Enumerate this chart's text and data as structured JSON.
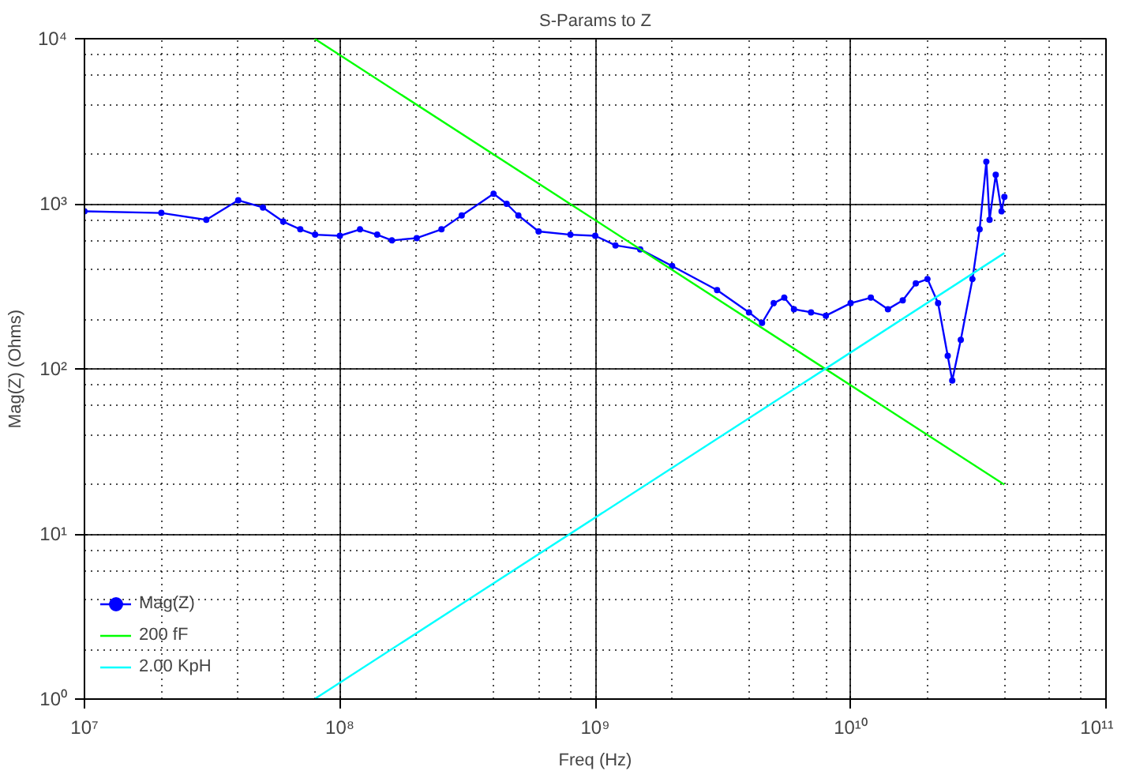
{
  "chart_data": {
    "type": "line",
    "title": "S-Params to Z",
    "xlabel": "Freq (Hz)",
    "ylabel": "Mag(Z) (Ohms)",
    "log": "xy",
    "grid": true,
    "legend": "bottom left",
    "xlim": [
      10000000.0,
      100000000000.0
    ],
    "ylim": [
      1,
      10000.0
    ],
    "xticks": [
      {
        "value": 10000000.0,
        "label": "10⁷"
      },
      {
        "value": 100000000.0,
        "label": "10⁸"
      },
      {
        "value": 1000000000.0,
        "label": "10⁹"
      },
      {
        "value": 10000000000.0,
        "label": "10¹⁰"
      },
      {
        "value": 100000000000.0,
        "label": "10¹¹"
      }
    ],
    "yticks": [
      {
        "value": 1,
        "label": "10⁰"
      },
      {
        "value": 10,
        "label": "10¹"
      },
      {
        "value": 100,
        "label": "10²"
      },
      {
        "value": 1000,
        "label": "10³"
      },
      {
        "value": 10000,
        "label": "10⁴"
      }
    ],
    "series": [
      {
        "name": "Mag(Z)",
        "color": "#0000ff",
        "marker": "circle",
        "x": [
          10000000.0,
          20000000.0,
          30000000.0,
          40000000.0,
          50000000.0,
          60000000.0,
          70000000.0,
          80000000.0,
          100000000.0,
          120000000.0,
          140000000.0,
          160000000.0,
          200000000.0,
          250000000.0,
          300000000.0,
          400000000.0,
          450000000.0,
          500000000.0,
          600000000.0,
          800000000.0,
          1000000000.0,
          1200000000.0,
          1500000000.0,
          2000000000.0,
          3000000000.0,
          4000000000.0,
          4500000000.0,
          5000000000.0,
          5500000000.0,
          6000000000.0,
          7000000000.0,
          8000000000.0,
          10000000000.0,
          12000000000.0,
          14000000000.0,
          16000000000.0,
          18000000000.0,
          20000000000.0,
          22000000000.0,
          24000000000.0,
          25000000000.0,
          27000000000.0,
          30000000000.0,
          32000000000.0,
          34000000000.0,
          35000000000.0,
          37000000000.0,
          39000000000.0,
          40000000000.0
        ],
        "values": [
          900,
          880,
          800,
          1050,
          950,
          780,
          700,
          650,
          640,
          700,
          650,
          600,
          620,
          700,
          850,
          1150,
          1000,
          850,
          680,
          650,
          640,
          560,
          530,
          420,
          300,
          220,
          190,
          250,
          270,
          230,
          220,
          210,
          250,
          270,
          230,
          260,
          330,
          350,
          250,
          120,
          85,
          150,
          350,
          700,
          1800,
          800,
          1500,
          900,
          1100
        ]
      },
      {
        "name": "200 fF",
        "color": "#00ff00",
        "x": [
          79600000.0,
          40000000000.0
        ],
        "values": [
          10000,
          19.9
        ]
      },
      {
        "name": "2.00 KpH",
        "color": "#00ffff",
        "x": [
          79600000.0,
          40000000000.0
        ],
        "values": [
          1,
          503
        ]
      }
    ]
  }
}
